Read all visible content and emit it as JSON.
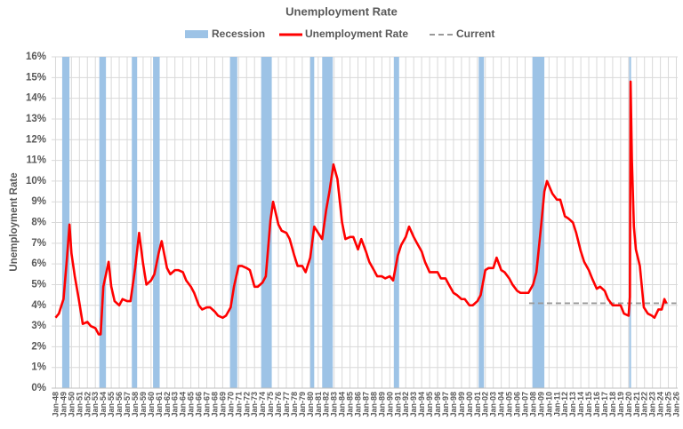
{
  "chart_data": {
    "type": "line",
    "title": "Unemployment Rate",
    "ylabel": "Unemployment Rate",
    "ylim": [
      0,
      16
    ],
    "yticks": [
      {
        "value": 0,
        "label": "0%"
      },
      {
        "value": 1,
        "label": "1%"
      },
      {
        "value": 2,
        "label": "2%"
      },
      {
        "value": 3,
        "label": "3%"
      },
      {
        "value": 4,
        "label": "4%"
      },
      {
        "value": 5,
        "label": "5%"
      },
      {
        "value": 6,
        "label": "6%"
      },
      {
        "value": 7,
        "label": "7%"
      },
      {
        "value": 8,
        "label": "8%"
      },
      {
        "value": 9,
        "label": "9%"
      },
      {
        "value": 10,
        "label": "10%"
      },
      {
        "value": 11,
        "label": "11%"
      },
      {
        "value": 12,
        "label": "12%"
      },
      {
        "value": 13,
        "label": "13%"
      },
      {
        "value": 14,
        "label": "14%"
      },
      {
        "value": 15,
        "label": "15%"
      },
      {
        "value": 16,
        "label": "16%"
      }
    ],
    "xlim": [
      "1947-07",
      "2026-03"
    ],
    "xticks": [
      {
        "value": "1948-01",
        "label": "Jan-48"
      },
      {
        "value": "1949-01",
        "label": "Jan-49"
      },
      {
        "value": "1950-01",
        "label": "Jan-50"
      },
      {
        "value": "1951-01",
        "label": "Jan-51"
      },
      {
        "value": "1952-01",
        "label": "Jan-52"
      },
      {
        "value": "1953-01",
        "label": "Jan-53"
      },
      {
        "value": "1954-01",
        "label": "Jan-54"
      },
      {
        "value": "1955-01",
        "label": "Jan-55"
      },
      {
        "value": "1956-01",
        "label": "Jan-56"
      },
      {
        "value": "1957-01",
        "label": "Jan-57"
      },
      {
        "value": "1958-01",
        "label": "Jan-58"
      },
      {
        "value": "1959-01",
        "label": "Jan-59"
      },
      {
        "value": "1960-01",
        "label": "Jan-60"
      },
      {
        "value": "1961-01",
        "label": "Jan-61"
      },
      {
        "value": "1962-01",
        "label": "Jan-62"
      },
      {
        "value": "1963-01",
        "label": "Jan-63"
      },
      {
        "value": "1964-01",
        "label": "Jan-64"
      },
      {
        "value": "1965-01",
        "label": "Jan-65"
      },
      {
        "value": "1966-01",
        "label": "Jan-66"
      },
      {
        "value": "1967-01",
        "label": "Jan-67"
      },
      {
        "value": "1968-01",
        "label": "Jan-68"
      },
      {
        "value": "1969-01",
        "label": "Jan-69"
      },
      {
        "value": "1970-01",
        "label": "Jan-70"
      },
      {
        "value": "1971-01",
        "label": "Jan-71"
      },
      {
        "value": "1972-01",
        "label": "Jan-72"
      },
      {
        "value": "1973-01",
        "label": "Jan-73"
      },
      {
        "value": "1974-01",
        "label": "Jan-74"
      },
      {
        "value": "1975-01",
        "label": "Jan-75"
      },
      {
        "value": "1976-01",
        "label": "Jan-76"
      },
      {
        "value": "1977-01",
        "label": "Jan-77"
      },
      {
        "value": "1978-01",
        "label": "Jan-78"
      },
      {
        "value": "1979-01",
        "label": "Jan-79"
      },
      {
        "value": "1980-01",
        "label": "Jan-80"
      },
      {
        "value": "1981-01",
        "label": "Jan-81"
      },
      {
        "value": "1982-01",
        "label": "Jan-82"
      },
      {
        "value": "1983-01",
        "label": "Jan-83"
      },
      {
        "value": "1984-01",
        "label": "Jan-84"
      },
      {
        "value": "1985-01",
        "label": "Jan-85"
      },
      {
        "value": "1986-01",
        "label": "Jan-86"
      },
      {
        "value": "1987-01",
        "label": "Jan-87"
      },
      {
        "value": "1988-01",
        "label": "Jan-88"
      },
      {
        "value": "1989-01",
        "label": "Jan-89"
      },
      {
        "value": "1990-01",
        "label": "Jan-90"
      },
      {
        "value": "1991-01",
        "label": "Jan-91"
      },
      {
        "value": "1992-01",
        "label": "Jan-92"
      },
      {
        "value": "1993-01",
        "label": "Jan-93"
      },
      {
        "value": "1994-01",
        "label": "Jan-94"
      },
      {
        "value": "1995-01",
        "label": "Jan-95"
      },
      {
        "value": "1996-01",
        "label": "Jan-96"
      },
      {
        "value": "1997-01",
        "label": "Jan-97"
      },
      {
        "value": "1998-01",
        "label": "Jan-98"
      },
      {
        "value": "1999-01",
        "label": "Jan-99"
      },
      {
        "value": "2000-01",
        "label": "Jan-00"
      },
      {
        "value": "2001-01",
        "label": "Jan-01"
      },
      {
        "value": "2002-01",
        "label": "Jan-02"
      },
      {
        "value": "2003-01",
        "label": "Jan-03"
      },
      {
        "value": "2004-01",
        "label": "Jan-04"
      },
      {
        "value": "2005-01",
        "label": "Jan-05"
      },
      {
        "value": "2006-01",
        "label": "Jan-06"
      },
      {
        "value": "2007-01",
        "label": "Jan-07"
      },
      {
        "value": "2008-01",
        "label": "Jan-08"
      },
      {
        "value": "2009-01",
        "label": "Jan-09"
      },
      {
        "value": "2010-01",
        "label": "Jan-10"
      },
      {
        "value": "2011-01",
        "label": "Jan-11"
      },
      {
        "value": "2012-01",
        "label": "Jan-12"
      },
      {
        "value": "2013-01",
        "label": "Jan-13"
      },
      {
        "value": "2014-01",
        "label": "Jan-14"
      },
      {
        "value": "2015-01",
        "label": "Jan-15"
      },
      {
        "value": "2016-01",
        "label": "Jan-16"
      },
      {
        "value": "2017-01",
        "label": "Jan-17"
      },
      {
        "value": "2018-01",
        "label": "Jan-18"
      },
      {
        "value": "2019-01",
        "label": "Jan-19"
      },
      {
        "value": "2020-01",
        "label": "Jan-20"
      },
      {
        "value": "2021-01",
        "label": "Jan-21"
      },
      {
        "value": "2022-01",
        "label": "Jan-22"
      },
      {
        "value": "2023-01",
        "label": "Jan-23"
      },
      {
        "value": "2024-01",
        "label": "Jan-24"
      },
      {
        "value": "2025-01",
        "label": "Jan-25"
      },
      {
        "value": "2026-01",
        "label": "Jan-26"
      }
    ],
    "grid": true,
    "recessions": {
      "name": "Recession",
      "color": "#9dc3e6",
      "start": [
        "1948-11",
        "1953-07",
        "1957-08",
        "1960-04",
        "1969-12",
        "1973-11",
        "1980-01",
        "1981-07",
        "1990-07",
        "2001-03",
        "2007-12",
        "2020-02"
      ],
      "end": [
        "1949-10",
        "1954-05",
        "1958-04",
        "1961-02",
        "1970-11",
        "1975-03",
        "1980-07",
        "1982-11",
        "1991-03",
        "2001-11",
        "2009-06",
        "2020-04"
      ]
    },
    "current": {
      "name": "Current",
      "color": "#999999",
      "value": 4.1,
      "x": [
        "2007-07",
        "2026-01"
      ]
    },
    "series": [
      {
        "name": "Unemployment Rate",
        "color": "#ff0000",
        "x": [
          "1948-01",
          "1948-06",
          "1949-01",
          "1949-06",
          "1949-10",
          "1950-01",
          "1950-06",
          "1950-12",
          "1951-06",
          "1952-01",
          "1952-06",
          "1953-01",
          "1953-06",
          "1953-09",
          "1954-01",
          "1954-09",
          "1955-01",
          "1955-06",
          "1956-01",
          "1956-06",
          "1957-01",
          "1957-06",
          "1958-01",
          "1958-07",
          "1959-01",
          "1959-06",
          "1960-01",
          "1960-06",
          "1961-01",
          "1961-05",
          "1962-01",
          "1962-06",
          "1963-01",
          "1963-06",
          "1964-01",
          "1964-06",
          "1965-01",
          "1965-06",
          "1966-01",
          "1966-06",
          "1967-01",
          "1967-06",
          "1968-01",
          "1968-06",
          "1969-01",
          "1969-06",
          "1970-01",
          "1970-06",
          "1971-01",
          "1971-06",
          "1972-01",
          "1972-06",
          "1973-01",
          "1973-06",
          "1974-01",
          "1974-06",
          "1975-01",
          "1975-05",
          "1976-01",
          "1976-06",
          "1977-01",
          "1977-06",
          "1978-01",
          "1978-06",
          "1979-01",
          "1979-06",
          "1980-01",
          "1980-07",
          "1981-01",
          "1981-07",
          "1982-01",
          "1982-06",
          "1982-12",
          "1983-06",
          "1984-01",
          "1984-06",
          "1985-01",
          "1985-06",
          "1986-01",
          "1986-06",
          "1987-01",
          "1987-06",
          "1988-01",
          "1988-06",
          "1989-01",
          "1989-06",
          "1990-01",
          "1990-06",
          "1991-01",
          "1991-06",
          "1992-01",
          "1992-06",
          "1993-01",
          "1993-06",
          "1994-01",
          "1994-06",
          "1995-01",
          "1995-06",
          "1996-01",
          "1996-06",
          "1997-01",
          "1997-06",
          "1998-01",
          "1998-06",
          "1999-01",
          "1999-06",
          "2000-01",
          "2000-06",
          "2001-01",
          "2001-06",
          "2002-01",
          "2002-06",
          "2003-01",
          "2003-06",
          "2004-01",
          "2004-06",
          "2005-01",
          "2005-06",
          "2006-01",
          "2006-06",
          "2007-01",
          "2007-06",
          "2008-01",
          "2008-06",
          "2009-01",
          "2009-06",
          "2009-10",
          "2010-06",
          "2011-01",
          "2011-06",
          "2012-01",
          "2012-06",
          "2013-01",
          "2013-06",
          "2014-01",
          "2014-06",
          "2015-01",
          "2015-06",
          "2016-01",
          "2016-06",
          "2017-01",
          "2017-06",
          "2018-01",
          "2018-06",
          "2019-01",
          "2019-06",
          "2020-01",
          "2020-03",
          "2020-04",
          "2020-06",
          "2020-09",
          "2020-12",
          "2021-06",
          "2021-12",
          "2022-06",
          "2022-12",
          "2023-04",
          "2023-10",
          "2024-03",
          "2024-07",
          "2024-10"
        ],
        "values": [
          3.4,
          3.6,
          4.3,
          6.2,
          7.9,
          6.5,
          5.4,
          4.3,
          3.1,
          3.2,
          3.0,
          2.9,
          2.6,
          2.6,
          4.9,
          6.1,
          4.9,
          4.2,
          4.0,
          4.3,
          4.2,
          4.2,
          5.8,
          7.5,
          6.0,
          5.0,
          5.2,
          5.5,
          6.6,
          7.1,
          5.8,
          5.5,
          5.7,
          5.7,
          5.6,
          5.2,
          4.9,
          4.6,
          4.0,
          3.8,
          3.9,
          3.9,
          3.7,
          3.5,
          3.4,
          3.5,
          3.9,
          4.9,
          5.9,
          5.9,
          5.8,
          5.7,
          4.9,
          4.9,
          5.1,
          5.4,
          8.1,
          9.0,
          7.9,
          7.6,
          7.5,
          7.2,
          6.4,
          5.9,
          5.9,
          5.6,
          6.3,
          7.8,
          7.5,
          7.2,
          8.6,
          9.5,
          10.8,
          10.1,
          8.0,
          7.2,
          7.3,
          7.3,
          6.7,
          7.2,
          6.6,
          6.1,
          5.7,
          5.4,
          5.4,
          5.3,
          5.4,
          5.2,
          6.4,
          6.9,
          7.3,
          7.8,
          7.3,
          7.0,
          6.6,
          6.1,
          5.6,
          5.6,
          5.6,
          5.3,
          5.3,
          5.0,
          4.6,
          4.5,
          4.3,
          4.3,
          4.0,
          4.0,
          4.2,
          4.5,
          5.7,
          5.8,
          5.8,
          6.3,
          5.7,
          5.6,
          5.3,
          5.0,
          4.7,
          4.6,
          4.6,
          4.6,
          5.0,
          5.6,
          7.8,
          9.5,
          10.0,
          9.4,
          9.1,
          9.1,
          8.3,
          8.2,
          8.0,
          7.5,
          6.6,
          6.1,
          5.7,
          5.3,
          4.8,
          4.9,
          4.7,
          4.3,
          4.0,
          4.0,
          4.0,
          3.6,
          3.5,
          4.4,
          14.8,
          11.0,
          7.8,
          6.7,
          5.9,
          3.9,
          3.6,
          3.5,
          3.4,
          3.8,
          3.8,
          4.3,
          4.1
        ]
      }
    ]
  }
}
